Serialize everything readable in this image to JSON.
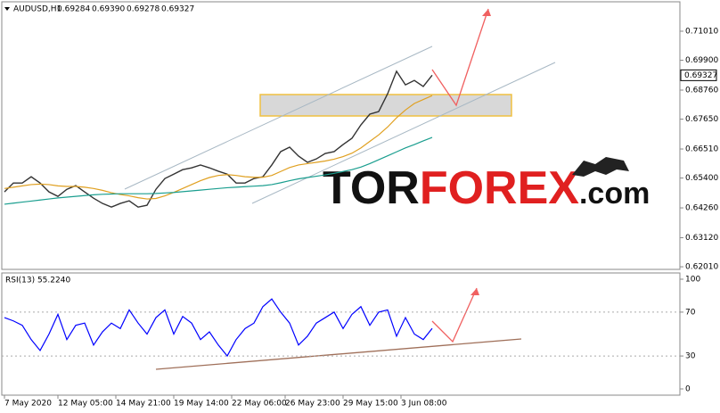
{
  "header": {
    "symbol": "AUDUSD,H1",
    "ohlc": [
      "0.69284",
      "0.69390",
      "0.69278",
      "0.69327"
    ]
  },
  "watermark": {
    "parts": [
      "TOR",
      "FOREX",
      ".com"
    ]
  },
  "chart_data": [
    {
      "type": "line",
      "ylim": [
        0.6191,
        0.721
      ],
      "yticks": [
        {
          "value": 0.7101,
          "label": "0.71010"
        },
        {
          "value": 0.699,
          "label": "0.69900"
        },
        {
          "value": 0.6876,
          "label": "0.68760"
        },
        {
          "value": 0.6765,
          "label": "0.67650"
        },
        {
          "value": 0.6651,
          "label": "0.66510"
        },
        {
          "value": 0.654,
          "label": "0.65400"
        },
        {
          "value": 0.6426,
          "label": "0.64260"
        },
        {
          "value": 0.6312,
          "label": "0.63120"
        },
        {
          "value": 0.6201,
          "label": "0.62010"
        }
      ],
      "last_price": {
        "value": 0.69327,
        "label": "0.69327"
      },
      "series": [
        {
          "color": "#333333",
          "values": [
            0.6487,
            0.6521,
            0.6521,
            0.6545,
            0.6521,
            0.6487,
            0.647,
            0.6497,
            0.6511,
            0.6487,
            0.6463,
            0.6443,
            0.6429,
            0.6443,
            0.6453,
            0.6429,
            0.6436,
            0.6497,
            0.6538,
            0.6555,
            0.6572,
            0.6579,
            0.659,
            0.6579,
            0.6566,
            0.6555,
            0.6521,
            0.6521,
            0.6538,
            0.6545,
            0.659,
            0.6641,
            0.6658,
            0.6624,
            0.66,
            0.6613,
            0.6634,
            0.6641,
            0.6668,
            0.6692,
            0.6743,
            0.6784,
            0.6794,
            0.6862,
            0.6948,
            0.6896,
            0.6913,
            0.689,
            0.6933
          ]
        },
        {
          "color": "#e0a020",
          "values": [
            0.65,
            0.6505,
            0.651,
            0.6515,
            0.6517,
            0.6515,
            0.651,
            0.6508,
            0.6508,
            0.6505,
            0.65,
            0.6493,
            0.6484,
            0.6477,
            0.6472,
            0.6465,
            0.646,
            0.6462,
            0.6472,
            0.6485,
            0.65,
            0.6515,
            0.653,
            0.6542,
            0.655,
            0.6553,
            0.655,
            0.6545,
            0.6543,
            0.6543,
            0.655,
            0.6565,
            0.658,
            0.659,
            0.6595,
            0.66,
            0.6605,
            0.6612,
            0.6622,
            0.6635,
            0.6655,
            0.668,
            0.6705,
            0.6735,
            0.677,
            0.68,
            0.6825,
            0.684,
            0.6855
          ]
        },
        {
          "color": "#1a9e8f",
          "values": [
            0.644,
            0.6444,
            0.6448,
            0.6452,
            0.6456,
            0.646,
            0.6464,
            0.6467,
            0.647,
            0.6473,
            0.6476,
            0.6478,
            0.6479,
            0.648,
            0.648,
            0.648,
            0.648,
            0.6481,
            0.6483,
            0.6485,
            0.6488,
            0.6491,
            0.6494,
            0.6497,
            0.65,
            0.6503,
            0.6505,
            0.6507,
            0.6509,
            0.6511,
            0.6515,
            0.6522,
            0.653,
            0.6537,
            0.6542,
            0.6547,
            0.6552,
            0.6558,
            0.6565,
            0.6572,
            0.6582,
            0.6595,
            0.661,
            0.6625,
            0.664,
            0.6655,
            0.6668,
            0.6682,
            0.6695
          ]
        }
      ]
    },
    {
      "type": "line",
      "title": "RSI(13) 55.2240",
      "ylim": [
        -5.7,
        105.7
      ],
      "yticks": [
        100,
        70,
        30,
        0
      ],
      "xticks": [
        {
          "value": 0,
          "label": "7 May 2020"
        },
        {
          "value": 6,
          "label": "12 May 05:00"
        },
        {
          "value": 12.5,
          "label": "14 May 21:00"
        },
        {
          "value": 19,
          "label": "19 May 14:00"
        },
        {
          "value": 25.5,
          "label": "22 May 06:00"
        },
        {
          "value": 31.5,
          "label": "26 May 23:00"
        },
        {
          "value": 38,
          "label": "29 May 15:00"
        },
        {
          "value": 44.5,
          "label": "3 Jun 08:00"
        }
      ],
      "series": [
        {
          "color": "#0000ff",
          "values": [
            65,
            62,
            58,
            45,
            35,
            50,
            68,
            45,
            58,
            60,
            40,
            52,
            60,
            55,
            72,
            60,
            50,
            65,
            72,
            50,
            66,
            60,
            45,
            52,
            40,
            30,
            45,
            55,
            60,
            75,
            82,
            70,
            60,
            40,
            48,
            60,
            65,
            70,
            55,
            68,
            75,
            58,
            70,
            72,
            48,
            65,
            50,
            45,
            55.224
          ]
        }
      ]
    }
  ]
}
